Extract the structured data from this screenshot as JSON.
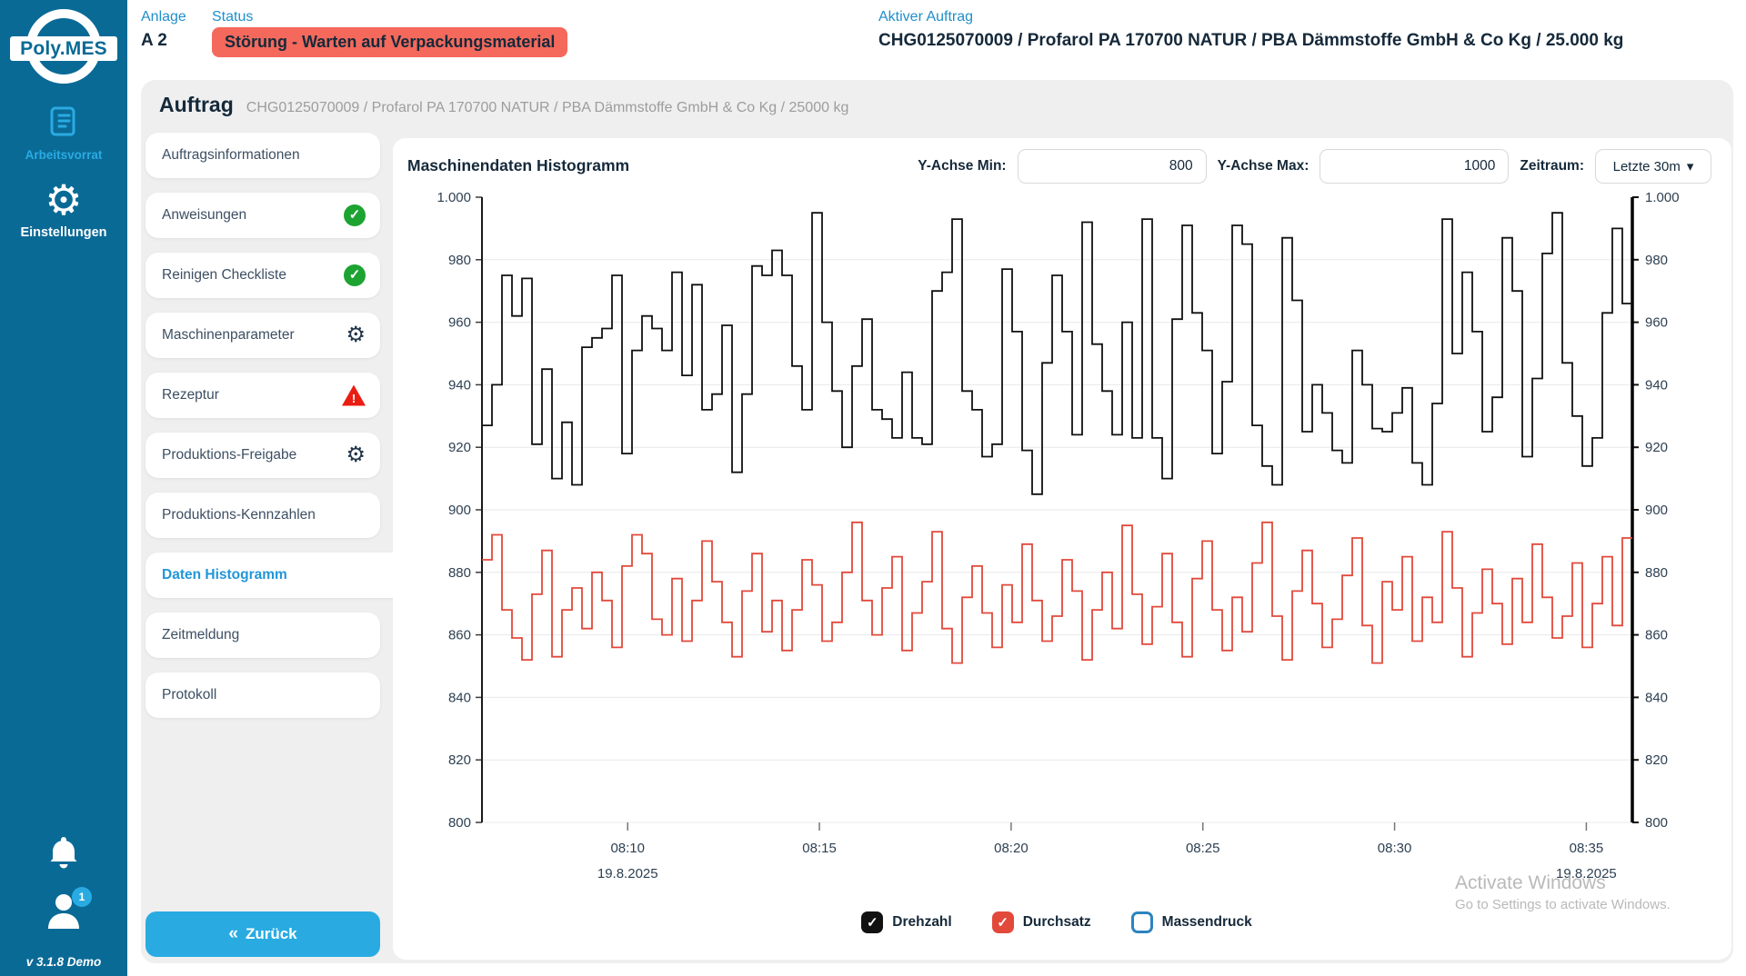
{
  "sidebar": {
    "logo": "Poly.MES",
    "items": [
      {
        "label": "Arbeitsvorrat",
        "icon": "scroll-icon"
      },
      {
        "label": "Einstellungen",
        "icon": "gear-icon"
      }
    ],
    "gear_glyph": "⚙",
    "user_badge": "1",
    "version": "v 3.1.8 Demo"
  },
  "topbar": {
    "anlage_label": "Anlage",
    "anlage_value": "A 2",
    "status_label": "Status",
    "status_value": "Störung - Warten auf Verpackungsmaterial",
    "auftrag_label": "Aktiver Auftrag",
    "auftrag_value": "CHG0125070009 / Profarol PA 170700 NATUR / PBA Dämmstoffe GmbH & Co Kg / 25.000 kg"
  },
  "panel": {
    "title": "Auftrag",
    "subtitle": "CHG0125070009 / Profarol PA 170700 NATUR / PBA Dämmstoffe GmbH & Co Kg / 25000 kg"
  },
  "nav": {
    "items": [
      {
        "label": "Auftragsinformationen",
        "icon": "none",
        "active": false
      },
      {
        "label": "Anweisungen",
        "icon": "check-circle",
        "active": false
      },
      {
        "label": "Reinigen Checkliste",
        "icon": "check-circle",
        "active": false
      },
      {
        "label": "Maschinenparameter",
        "icon": "gear",
        "active": false
      },
      {
        "label": "Rezeptur",
        "icon": "warning-triangle",
        "active": false
      },
      {
        "label": "Produktions-Freigabe",
        "icon": "gear",
        "active": false
      },
      {
        "label": "Produktions-Kennzahlen",
        "icon": "none",
        "active": false
      },
      {
        "label": "Daten Histogramm",
        "icon": "none",
        "active": true
      },
      {
        "label": "Zeitmeldung",
        "icon": "none",
        "active": false
      },
      {
        "label": "Protokoll",
        "icon": "none",
        "active": false
      }
    ],
    "back_label": "Zurück",
    "back_chevrons": "«",
    "check_glyph": "✓"
  },
  "chart": {
    "title": "Maschinendaten Histogramm",
    "y_min_label": "Y-Achse Min:",
    "y_min_value": "800",
    "y_max_label": "Y-Achse Max:",
    "y_max_value": "1000",
    "zeitraum_label": "Zeitraum:",
    "zeitraum_value": "Letzte 30m",
    "dropdown_glyph": "▾"
  },
  "chart_data": {
    "type": "line",
    "step": true,
    "title": "Maschinendaten Histogramm",
    "grid": true,
    "y_axis": {
      "min": 800,
      "max": 1000,
      "tick_step": 20,
      "labels": [
        "1.000",
        "980",
        "960",
        "940",
        "920",
        "900",
        "880",
        "860",
        "840",
        "820",
        "800"
      ]
    },
    "x_axis": {
      "start_min": 6.2,
      "end_min": 36.2,
      "ticks": [
        {
          "label": "08:10",
          "min": 10,
          "date": "19.8.2025"
        },
        {
          "label": "08:15",
          "min": 15
        },
        {
          "label": "08:20",
          "min": 20
        },
        {
          "label": "08:25",
          "min": 25
        },
        {
          "label": "08:30",
          "min": 30
        },
        {
          "label": "08:35",
          "min": 35,
          "date": "19.8.2025"
        }
      ]
    },
    "series": [
      {
        "name": "Drehzahl",
        "color": "#111111",
        "values": [
          927,
          940,
          975,
          962,
          974,
          921,
          945,
          910,
          928,
          908,
          952,
          955,
          958,
          975,
          918,
          951,
          962,
          958,
          951,
          976,
          943,
          972,
          932,
          937,
          959,
          912,
          937,
          978,
          975,
          983,
          975,
          946,
          932,
          995,
          960,
          938,
          920,
          946,
          961,
          932,
          929,
          923,
          944,
          923,
          921,
          970,
          976,
          993,
          938,
          932,
          917,
          921,
          977,
          957,
          919,
          905,
          947,
          975,
          957,
          924,
          992,
          953,
          938,
          924,
          960,
          923,
          993,
          923,
          910,
          961,
          991,
          963,
          951,
          918,
          941,
          991,
          985,
          927,
          914,
          908,
          987,
          967,
          925,
          940,
          931,
          919,
          915,
          951,
          940,
          926,
          925,
          931,
          939,
          915,
          908,
          934,
          993,
          950,
          976,
          957,
          925,
          936,
          987,
          970,
          917,
          942,
          982,
          995,
          947,
          930,
          914,
          923,
          963,
          990,
          966
        ]
      },
      {
        "name": "Durchsatz",
        "color": "#e2493b",
        "values": [
          884,
          892,
          868,
          859,
          852,
          873,
          887,
          853,
          868,
          875,
          862,
          880,
          871,
          856,
          882,
          892,
          886,
          865,
          860,
          878,
          858,
          871,
          890,
          877,
          864,
          853,
          874,
          886,
          861,
          871,
          855,
          868,
          884,
          876,
          858,
          864,
          880,
          896,
          871,
          860,
          875,
          885,
          855,
          867,
          877,
          893,
          862,
          851,
          872,
          882,
          867,
          856,
          876,
          864,
          889,
          871,
          858,
          866,
          884,
          874,
          852,
          868,
          880,
          862,
          895,
          873,
          857,
          869,
          886,
          864,
          853,
          878,
          890,
          868,
          855,
          872,
          861,
          883,
          896,
          866,
          852,
          874,
          887,
          870,
          856,
          865,
          879,
          891,
          863,
          851,
          877,
          868,
          885,
          858,
          872,
          864,
          893,
          875,
          853,
          867,
          881,
          870,
          857,
          878,
          864,
          889,
          872,
          859,
          866,
          883,
          856,
          870,
          885,
          863,
          891
        ]
      }
    ],
    "legend": [
      {
        "label": "Drehzahl",
        "color": "#111111",
        "checked": true
      },
      {
        "label": "Durchsatz",
        "color": "#e2493b",
        "checked": true
      },
      {
        "label": "Massendruck",
        "color": "#2d83c0",
        "checked": false
      }
    ],
    "legend_position": "bottom-center"
  },
  "watermark": {
    "line1": "Activate Windows",
    "line2": "Go to Settings to activate Windows."
  }
}
